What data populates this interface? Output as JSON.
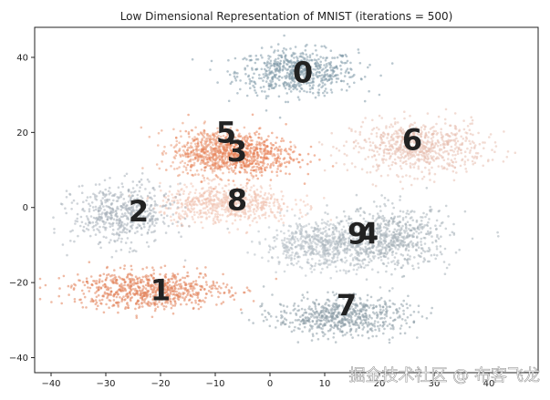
{
  "chart_data": {
    "type": "scatter",
    "title": "Low Dimensional Representation of MNIST (iterations = 500)",
    "xlabel": "",
    "ylabel": "",
    "xlim": [
      -43,
      49
    ],
    "ylim": [
      -44,
      48
    ],
    "x_ticks": [
      "-40",
      "-30",
      "-20",
      "-10",
      "0",
      "10",
      "20",
      "30",
      "40"
    ],
    "y_ticks": [
      "40",
      "20",
      "0",
      "-20",
      "-40"
    ],
    "grid": false,
    "legend": "none",
    "colors": {
      "0": "#7f99a8",
      "1": "#e2815a",
      "2": "#a7b1ba",
      "3": "#e77e52",
      "4": "#a6b0b8",
      "5": "#ea9a78",
      "6": "#e7c0b0",
      "7": "#8e9fa8",
      "8": "#f1c3b0",
      "9": "#b5bec5"
    },
    "clusters": [
      {
        "label": "0",
        "label_x": 6,
        "label_y": 36,
        "cx": 5,
        "cy": 36,
        "sx": 11,
        "sy": 6,
        "n": 650
      },
      {
        "label": "6",
        "label_x": 26,
        "label_y": 18,
        "cx": 27,
        "cy": 16,
        "sx": 12,
        "sy": 7,
        "n": 700
      },
      {
        "label": "5",
        "label_x": -8,
        "label_y": 20,
        "cx": -10,
        "cy": 15,
        "sx": 8,
        "sy": 6,
        "n": 550
      },
      {
        "label": "3",
        "label_x": -6,
        "label_y": 15,
        "cx": -5,
        "cy": 14,
        "sx": 10,
        "sy": 6,
        "n": 500
      },
      {
        "label": "8",
        "label_x": -6,
        "label_y": 2,
        "cx": -8,
        "cy": 1,
        "sx": 12,
        "sy": 5,
        "n": 650
      },
      {
        "label": "2",
        "label_x": -24,
        "label_y": -1,
        "cx": -27,
        "cy": -2,
        "sx": 9,
        "sy": 8,
        "n": 550
      },
      {
        "label": "9",
        "label_x": 16,
        "label_y": -7,
        "cx": 10,
        "cy": -10,
        "sx": 11,
        "sy": 6,
        "n": 650
      },
      {
        "label": "4",
        "label_x": 18,
        "label_y": -7,
        "cx": 22,
        "cy": -8,
        "sx": 11,
        "sy": 8,
        "n": 650
      },
      {
        "label": "1",
        "label_x": -20,
        "label_y": -22,
        "cx": -22,
        "cy": -22,
        "sx": 14,
        "sy": 5,
        "n": 750
      },
      {
        "label": "7",
        "label_x": 14,
        "label_y": -26,
        "cx": 13,
        "cy": -29,
        "sx": 12,
        "sy": 5,
        "n": 650
      }
    ]
  },
  "watermark": "掘金技术社区 @ 布客飞龙"
}
